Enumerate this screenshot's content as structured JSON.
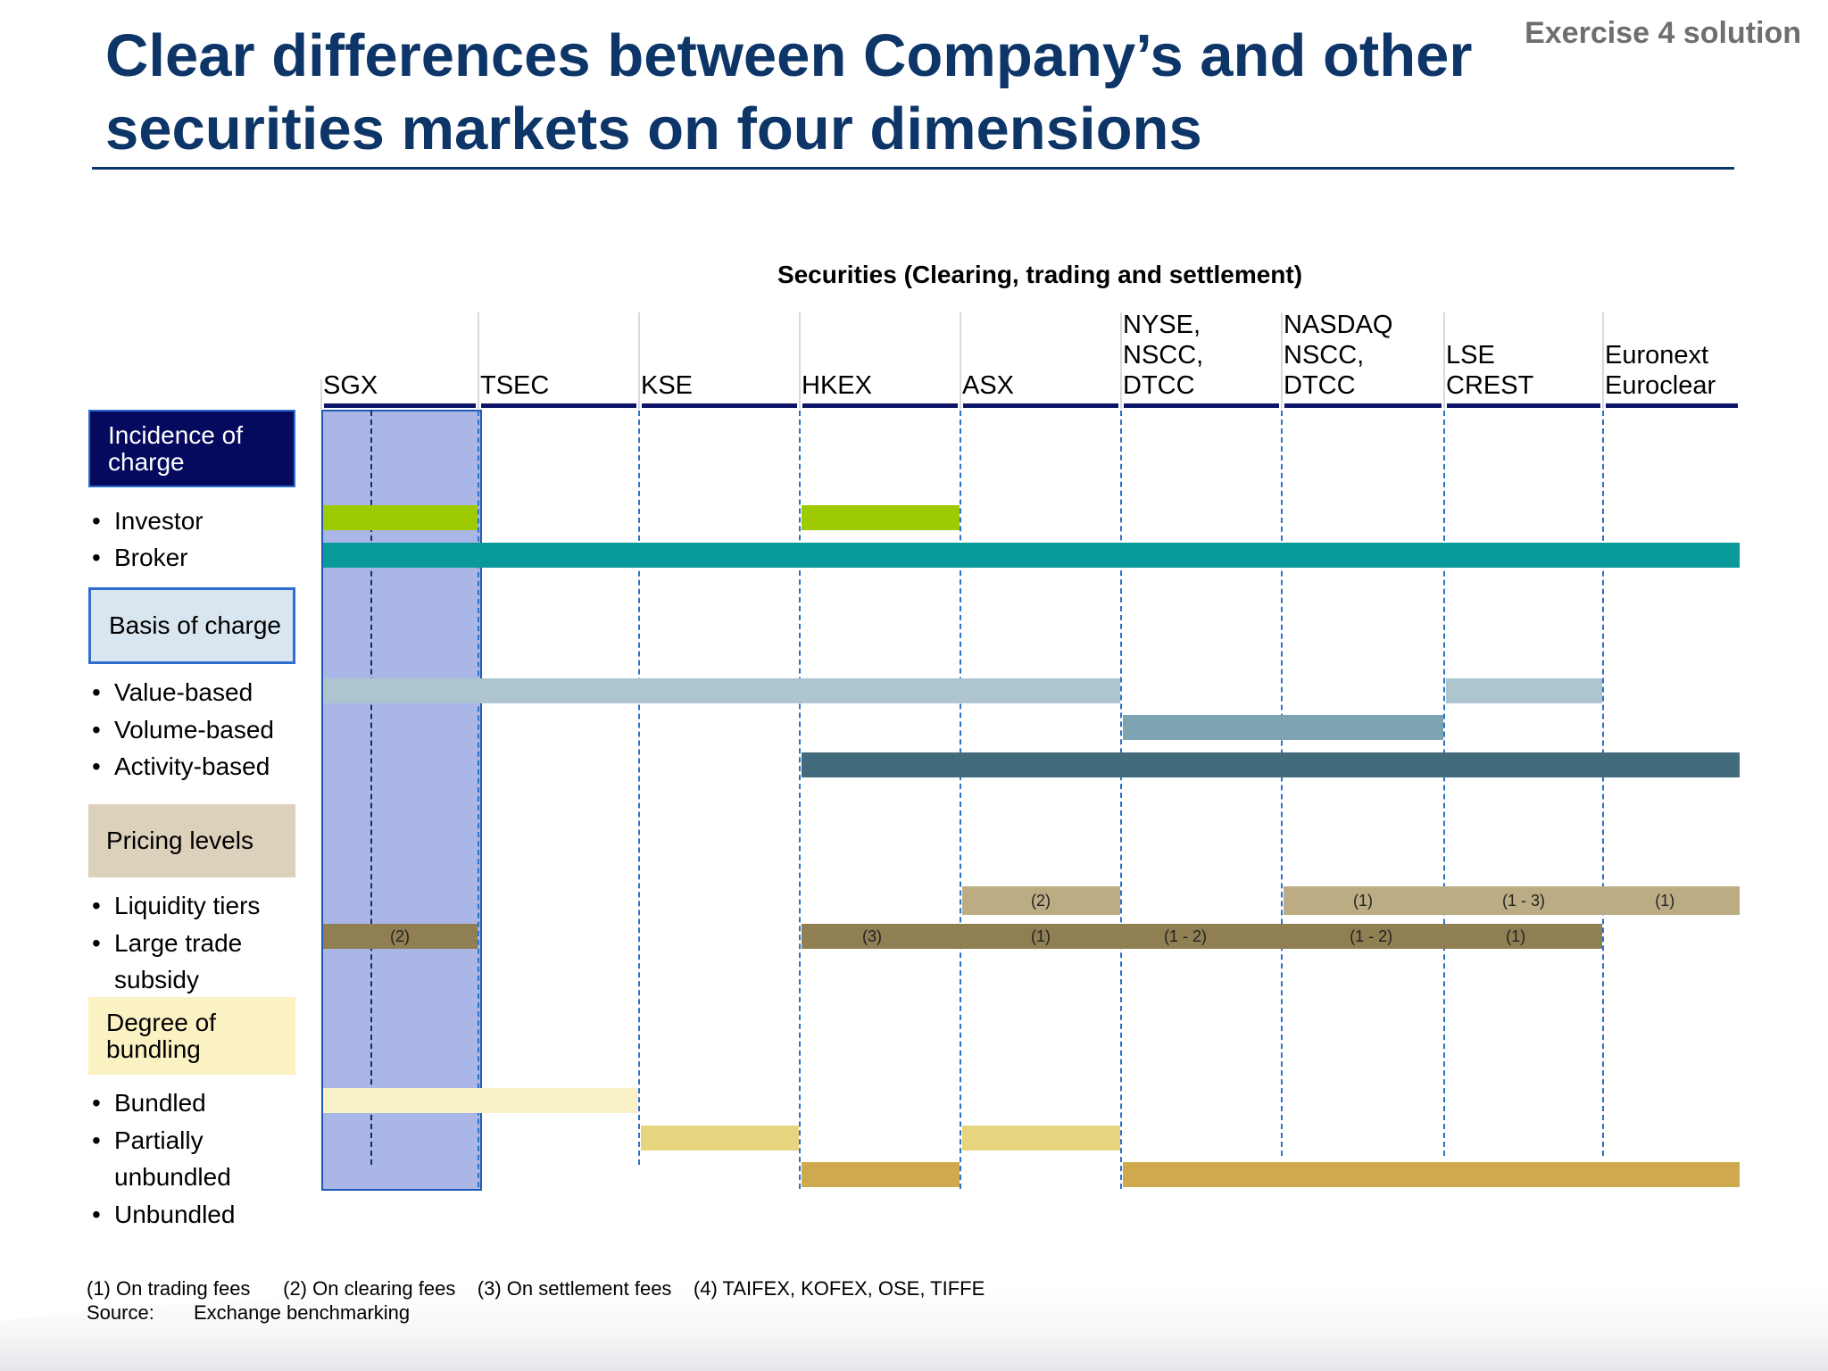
{
  "header": {
    "title_line1": "Clear differences between Company’s and other",
    "title_line2": "securities markets on four dimensions",
    "exercise": "Exercise 4 solution"
  },
  "chart_heading": "Securities (Clearing, trading and settlement)",
  "columns": [
    {
      "id": "sgx",
      "lines": [
        "SGX"
      ]
    },
    {
      "id": "tsec",
      "lines": [
        "TSEC"
      ]
    },
    {
      "id": "kse",
      "lines": [
        "KSE"
      ]
    },
    {
      "id": "hkex",
      "lines": [
        "HKEX"
      ]
    },
    {
      "id": "asx",
      "lines": [
        "ASX"
      ]
    },
    {
      "id": "nyse",
      "lines": [
        "NYSE,",
        "NSCC,",
        "DTCC"
      ]
    },
    {
      "id": "nasdaq",
      "lines": [
        "NASDAQ",
        "NSCC,",
        "DTCC"
      ]
    },
    {
      "id": "lse",
      "lines": [
        "LSE",
        "CREST"
      ]
    },
    {
      "id": "euronext",
      "lines": [
        "Euronext",
        "Euroclear"
      ]
    }
  ],
  "sections": {
    "incidence": "Incidence of charge",
    "basis": "Basis of charge",
    "pricing": "Pricing levels",
    "bundling": "Degree of bundling"
  },
  "rows": {
    "investor": "Investor",
    "broker": "Broker",
    "value_based": "Value-based",
    "volume_based": "Volume-based",
    "activity_based": "Activity-based",
    "liquidity_tiers": "Liquidity tiers",
    "large_trade_1": "Large trade",
    "large_trade_2": "subsidy",
    "bundled": "Bundled",
    "partially_1": "Partially",
    "partially_2": "unbundled",
    "unbundled": "Unbundled"
  },
  "bullet": "•",
  "colors": {
    "investor": "#9dca00",
    "broker": "#08999b",
    "value_based": "#acc5cf",
    "volume_based": "#7ea4b4",
    "activity_based": "#426c7b",
    "liquidity_tiers": "#bcac84",
    "large_trade": "#8f7f52",
    "bundled": "#f9f1c8",
    "partially_unbundled": "#e6d47e",
    "unbundled": "#cfa94e"
  },
  "bars": [
    {
      "row": "investor",
      "from": 0,
      "to": 1
    },
    {
      "row": "investor",
      "from": 3,
      "to": 4
    },
    {
      "row": "broker",
      "from": 0,
      "to": 9
    },
    {
      "row": "value_based",
      "from": 0,
      "to": 5
    },
    {
      "row": "value_based",
      "from": 7,
      "to": 8
    },
    {
      "row": "volume_based",
      "from": 5,
      "to": 7
    },
    {
      "row": "activity_based",
      "from": 3,
      "to": 9
    },
    {
      "row": "liquidity_tiers",
      "from": 4,
      "to": 5,
      "labels": [
        {
          "at": 4.5,
          "text": "(2)"
        }
      ]
    },
    {
      "row": "liquidity_tiers",
      "from": 6,
      "to": 9,
      "labels": [
        {
          "at": 6.5,
          "text": "(1)"
        },
        {
          "at": 7.5,
          "text": "(1 - 3)"
        },
        {
          "at": 8.45,
          "text": "(1)"
        }
      ]
    },
    {
      "row": "large_trade",
      "from": 0,
      "to": 1,
      "labels": [
        {
          "at": 0.5,
          "text": "(2)"
        }
      ]
    },
    {
      "row": "large_trade",
      "from": 3,
      "to": 8,
      "labels": [
        {
          "at": 3.45,
          "text": "(3)"
        },
        {
          "at": 4.5,
          "text": "(1)"
        },
        {
          "at": 5.4,
          "text": "(1 - 2)"
        },
        {
          "at": 6.55,
          "text": "(1 - 2)"
        },
        {
          "at": 7.45,
          "text": "(1)"
        }
      ]
    },
    {
      "row": "bundled",
      "from": 0,
      "to": 2
    },
    {
      "row": "partially_unbundled",
      "from": 2,
      "to": 3
    },
    {
      "row": "partially_unbundled",
      "from": 4,
      "to": 5
    },
    {
      "row": "unbundled",
      "from": 3,
      "to": 4
    },
    {
      "row": "unbundled",
      "from": 5,
      "to": 9
    }
  ],
  "footnotes": {
    "n1": "(1)    On trading fees",
    "n2": "(2)  On clearing fees",
    "n3": "(3)  On settlement fees",
    "n4": "(4)  TAIFEX, KOFEX, OSE, TIFFE",
    "source_label": "Source:",
    "source_text": "Exchange benchmarking"
  }
}
